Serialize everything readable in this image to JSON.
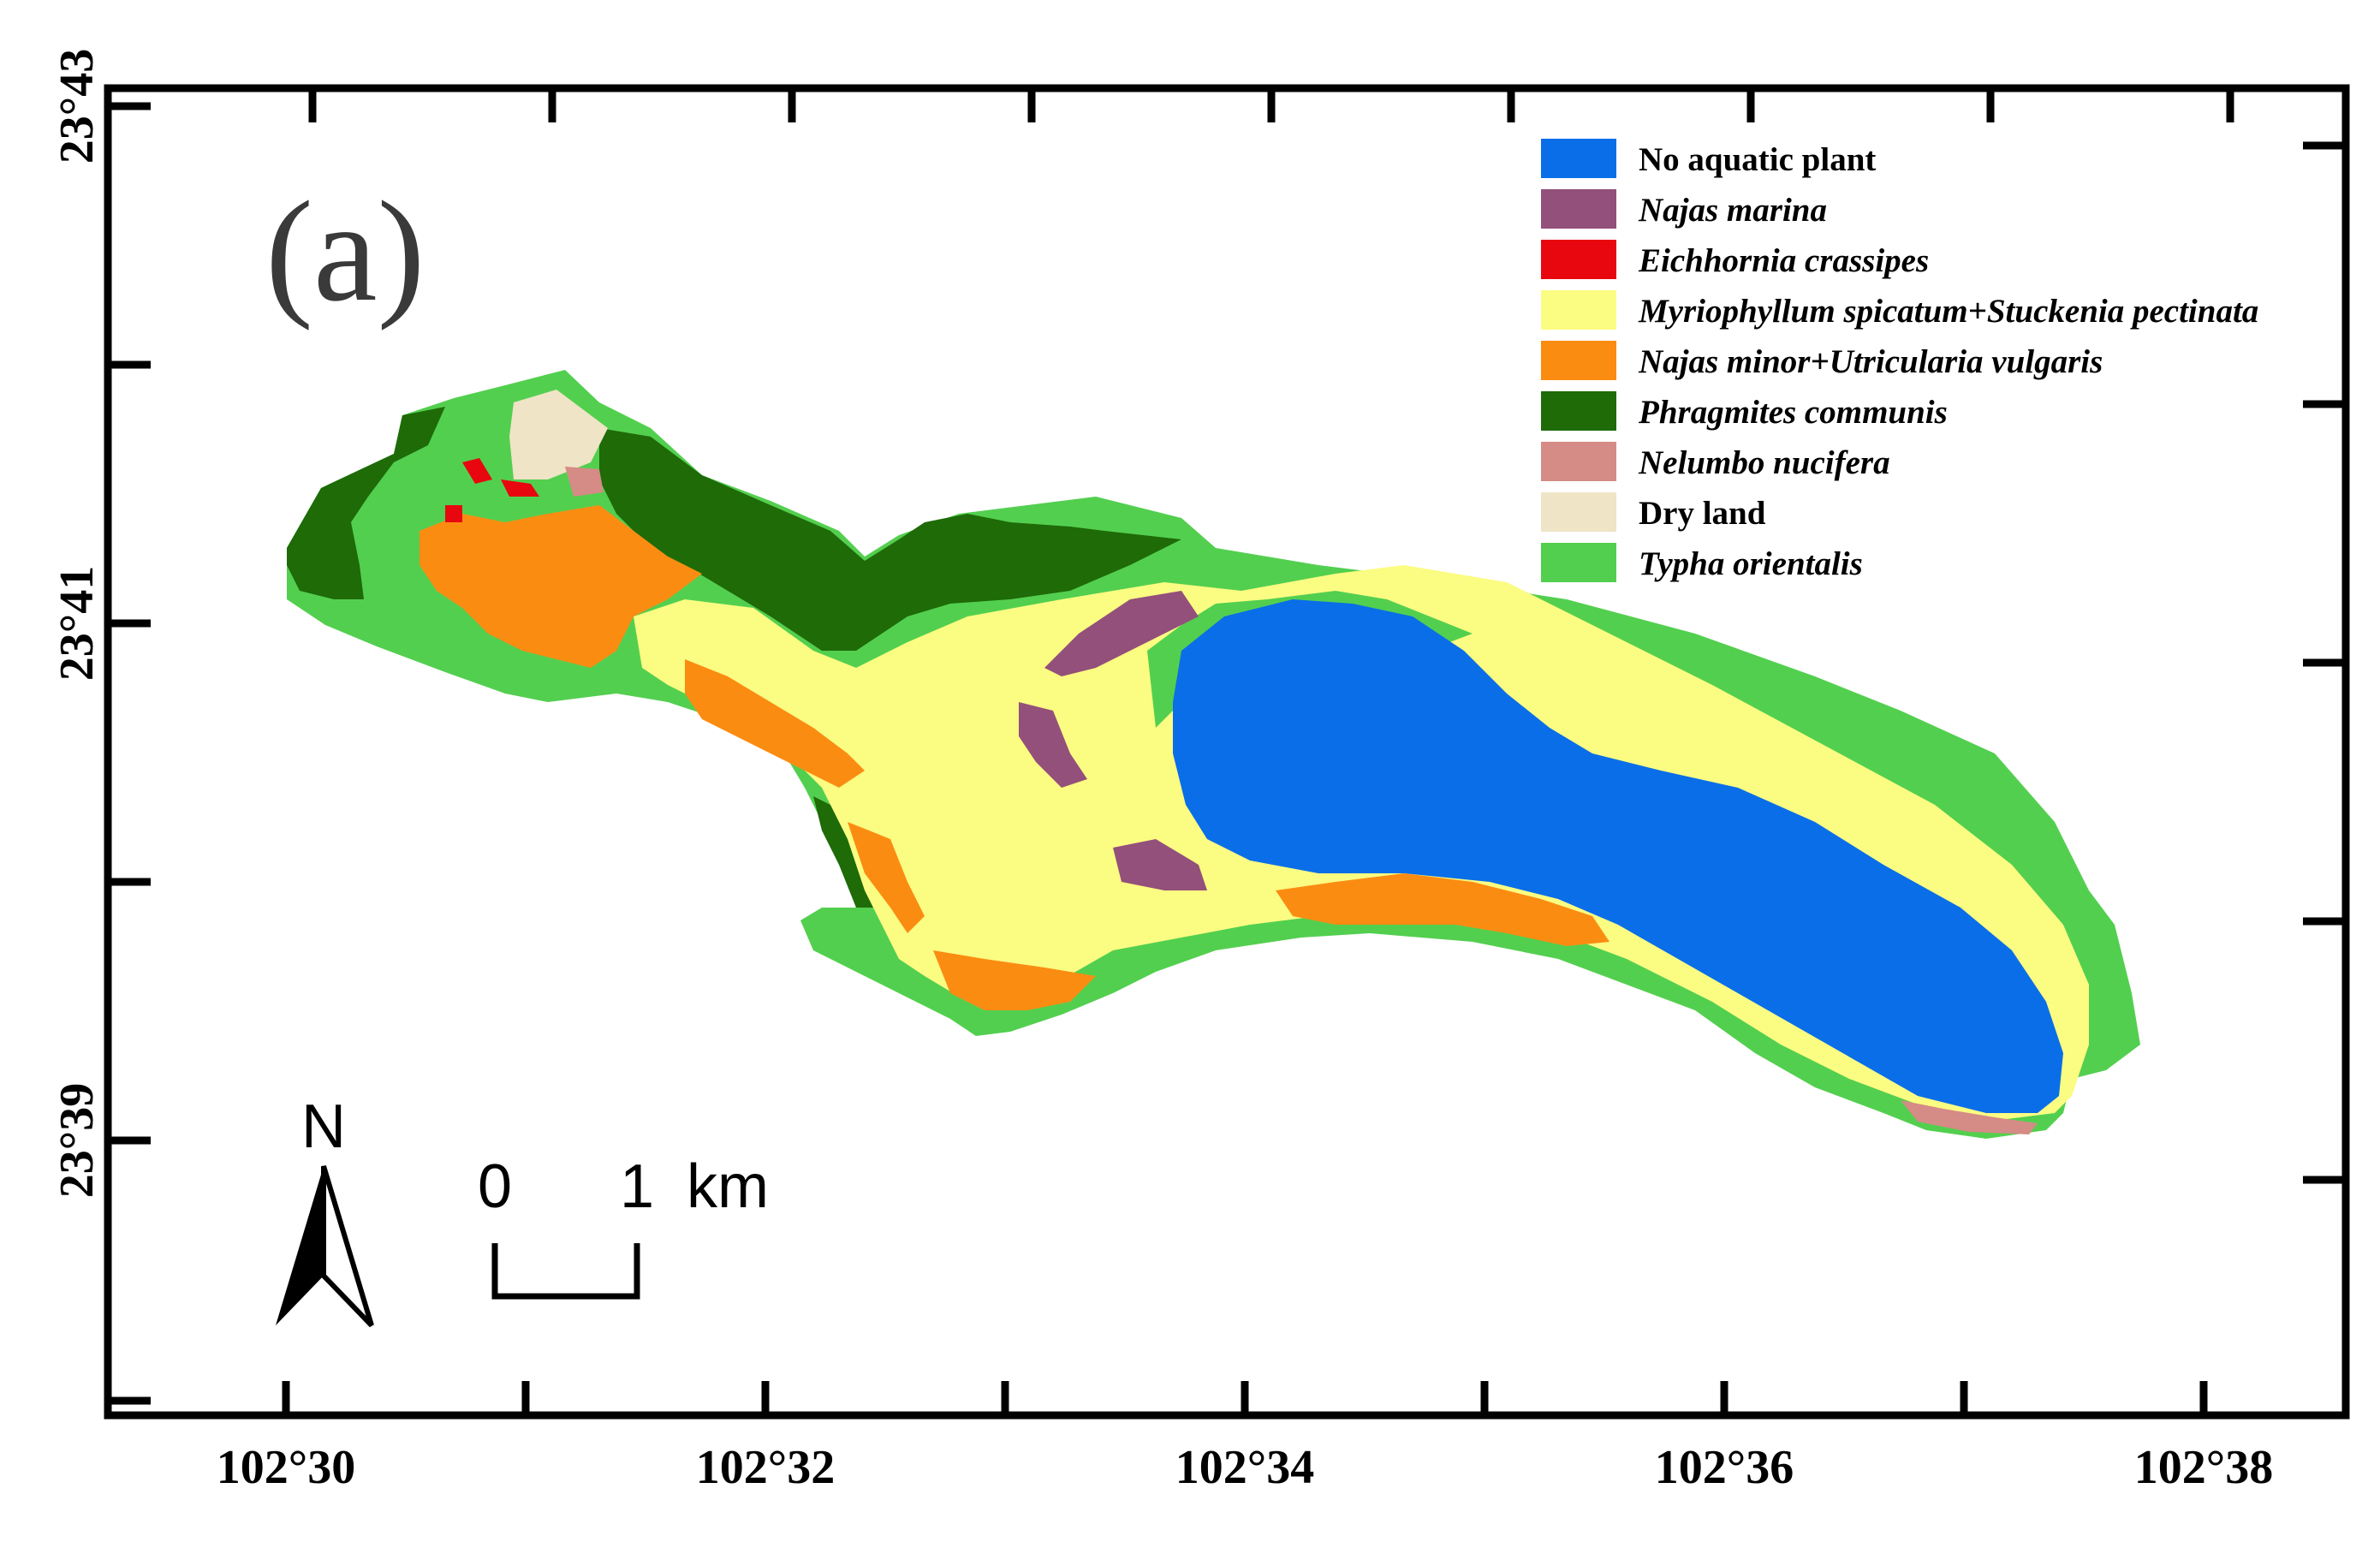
{
  "panel_label": "(a)",
  "axes": {
    "x_ticks": [
      "102°30",
      "102°32",
      "102°34",
      "102°36",
      "102°38"
    ],
    "y_ticks": [
      "23°43",
      "23°41",
      "23°39"
    ]
  },
  "legend": [
    {
      "label": "No aquatic plant",
      "color": "#0a6ee8",
      "italic": false
    },
    {
      "label": "Najas marina",
      "color": "#93507a",
      "italic": true
    },
    {
      "label": "Eichhornia crassipes",
      "color": "#e8070f",
      "italic": true
    },
    {
      "label": "Myriophyllum spicatum+Stuckenia pectinata",
      "color": "#fbfc82",
      "italic": true
    },
    {
      "label": "Najas minor+Utricularia vulgaris",
      "color": "#fb8c12",
      "italic": true
    },
    {
      "label": "Phragmites communis",
      "color": "#1e6b08",
      "italic": true
    },
    {
      "label": "Nelumbo nucifera",
      "color": "#d58b86",
      "italic": true
    },
    {
      "label": "Dry land",
      "color": "#efe4c6",
      "italic": false
    },
    {
      "label": "Typha orientalis",
      "color": "#53cf4f",
      "italic": true
    }
  ],
  "north_arrow": {
    "label": "N"
  },
  "scale_bar": {
    "start": "0",
    "end": "1",
    "unit": "km"
  }
}
